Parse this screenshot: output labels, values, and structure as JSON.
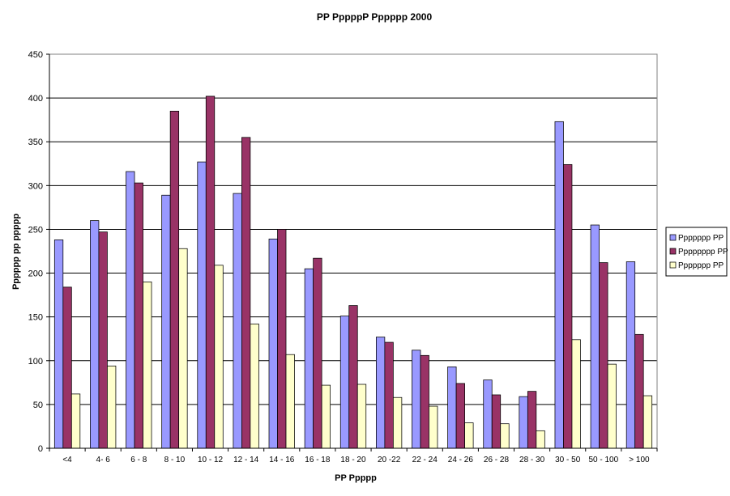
{
  "chart_data": {
    "type": "bar",
    "title": "PP PppppP Pppppp 2000",
    "xlabel": "PP Ppppp",
    "ylabel": "Pppppp pp ppppp",
    "ylim": [
      0,
      450
    ],
    "yticks": [
      0,
      50,
      100,
      150,
      200,
      250,
      300,
      350,
      400,
      450
    ],
    "grid": true,
    "legend_position": "right",
    "categories": [
      "<4",
      "4- 6",
      "6 - 8",
      "8 - 10",
      "10 - 12",
      "12 - 14",
      "14 - 16",
      "16 - 18",
      "18 - 20",
      "20 -22",
      "22 - 24",
      "24 - 26",
      "26 - 28",
      "28 - 30",
      "30 - 50",
      "50 - 100",
      "> 100"
    ],
    "series": [
      {
        "name": "Ppppppp PP",
        "color": "#9999ff",
        "values": [
          238,
          260,
          316,
          289,
          327,
          291,
          239,
          205,
          151,
          127,
          112,
          93,
          78,
          59,
          373,
          255,
          213
        ]
      },
      {
        "name": "Pppppppp PP",
        "color": "#993366",
        "values": [
          184,
          247,
          303,
          385,
          402,
          355,
          250,
          217,
          163,
          121,
          106,
          74,
          61,
          65,
          324,
          212,
          130
        ]
      },
      {
        "name": "Ppppppp PP",
        "color": "#ffffcc",
        "values": [
          62,
          94,
          190,
          228,
          209,
          142,
          107,
          72,
          73,
          58,
          48,
          29,
          28,
          20,
          124,
          96,
          60
        ]
      }
    ]
  }
}
